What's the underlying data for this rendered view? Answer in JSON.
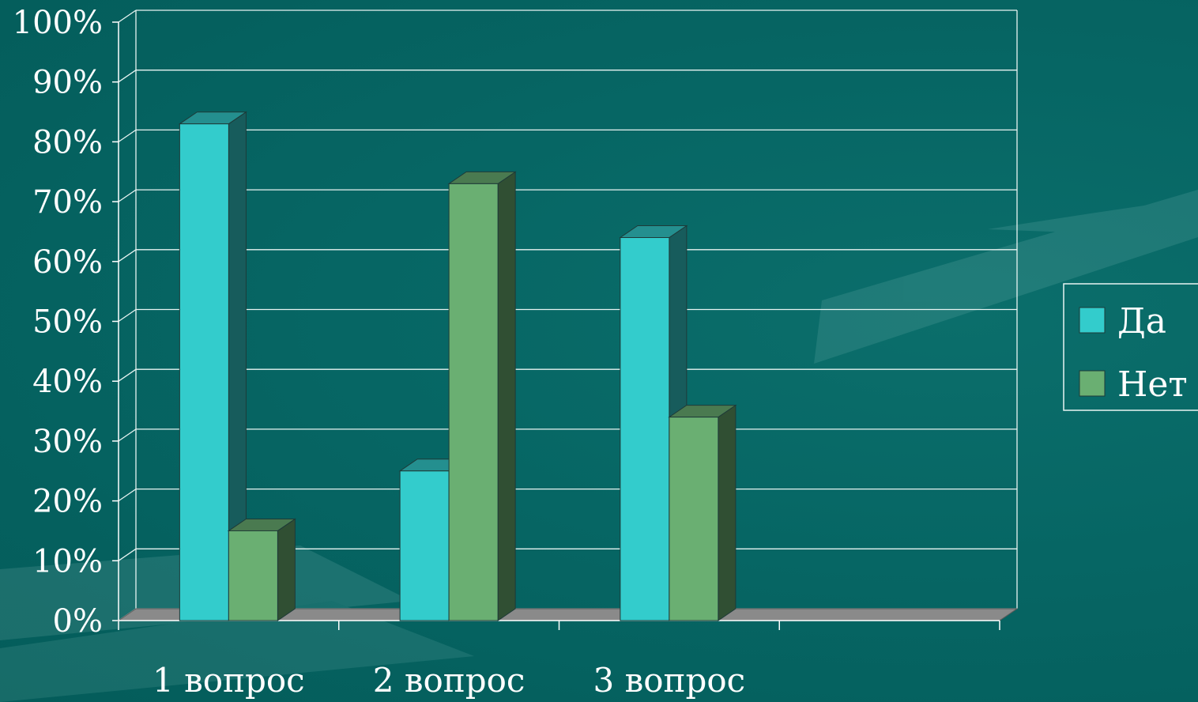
{
  "chart_data": {
    "type": "bar",
    "three_d": true,
    "categories": [
      "1 вопрос",
      "2 вопрос",
      "3 вопрос",
      ""
    ],
    "series": [
      {
        "name": "Да",
        "values": [
          83,
          25,
          64,
          null
        ],
        "color": "#33cccc"
      },
      {
        "name": "Нет",
        "values": [
          15,
          73,
          34,
          null
        ],
        "color": "#6aaf72"
      }
    ],
    "yticks": [
      "0%",
      "10%",
      "20%",
      "30%",
      "40%",
      "50%",
      "60%",
      "70%",
      "80%",
      "90%",
      "100%"
    ],
    "ylim": [
      0,
      100
    ],
    "grid": true,
    "legend_position": "right",
    "colors": {
      "background": "#066664",
      "gridline": "#e8f4f2",
      "floor": "#8a8a8a",
      "axis": "#ffffff"
    }
  }
}
